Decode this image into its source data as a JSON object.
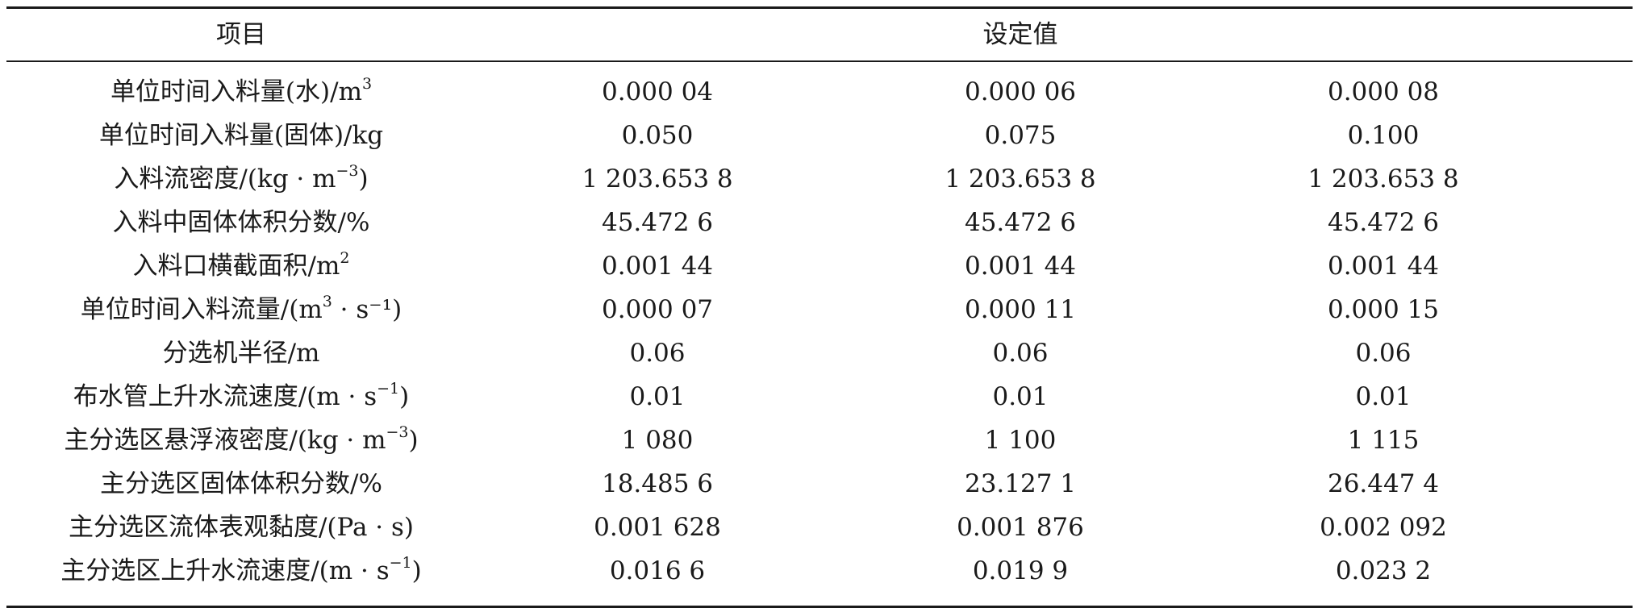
{
  "table": {
    "header": {
      "item_label": "项目",
      "value_label": "设定值"
    },
    "rows": [
      {
        "label": "单位时间入料量(水)/m",
        "sup": "3",
        "suffix": "",
        "values": [
          "0.000 04",
          "0.000 06",
          "0.000 08"
        ]
      },
      {
        "label": "单位时间入料量(固体)/kg",
        "sup": "",
        "suffix": "",
        "values": [
          "0.050",
          "0.075",
          "0.100"
        ]
      },
      {
        "label": "入料流密度/(kg · m",
        "sup": "−3",
        "suffix": ")",
        "values": [
          "1 203.653 8",
          "1 203.653 8",
          "1 203.653 8"
        ]
      },
      {
        "label": "入料中固体体积分数/%",
        "sup": "",
        "suffix": "",
        "values": [
          "45.472 6",
          "45.472 6",
          "45.472 6"
        ]
      },
      {
        "label": "入料口横截面积/m",
        "sup": "2",
        "suffix": "",
        "values": [
          "0.001 44",
          "0.001 44",
          "0.001 44"
        ]
      },
      {
        "label": "单位时间入料流量/(m",
        "sup": "3",
        "suffix": " · s⁻¹)",
        "values": [
          "0.000 07",
          "0.000 11",
          "0.000 15"
        ]
      },
      {
        "label": "分选机半径/m",
        "sup": "",
        "suffix": "",
        "values": [
          "0.06",
          "0.06",
          "0.06"
        ]
      },
      {
        "label": "布水管上升水流速度/(m · s",
        "sup": "−1",
        "suffix": ")",
        "values": [
          "0.01",
          "0.01",
          "0.01"
        ]
      },
      {
        "label": "主分选区悬浮液密度/(kg · m",
        "sup": "−3",
        "suffix": ")",
        "values": [
          "1 080",
          "1 100",
          "1 115"
        ]
      },
      {
        "label": "主分选区固体体积分数/%",
        "sup": "",
        "suffix": "",
        "values": [
          "18.485 6",
          "23.127 1",
          "26.447 4"
        ]
      },
      {
        "label": "主分选区流体表观黏度/(Pa · s)",
        "sup": "",
        "suffix": "",
        "values": [
          "0.001 628",
          "0.001 876",
          "0.002 092"
        ]
      },
      {
        "label": "主分选区上升水流速度/(m · s",
        "sup": "−1",
        "suffix": ")",
        "values": [
          "0.016 6",
          "0.019 9",
          "0.023 2"
        ]
      }
    ]
  }
}
